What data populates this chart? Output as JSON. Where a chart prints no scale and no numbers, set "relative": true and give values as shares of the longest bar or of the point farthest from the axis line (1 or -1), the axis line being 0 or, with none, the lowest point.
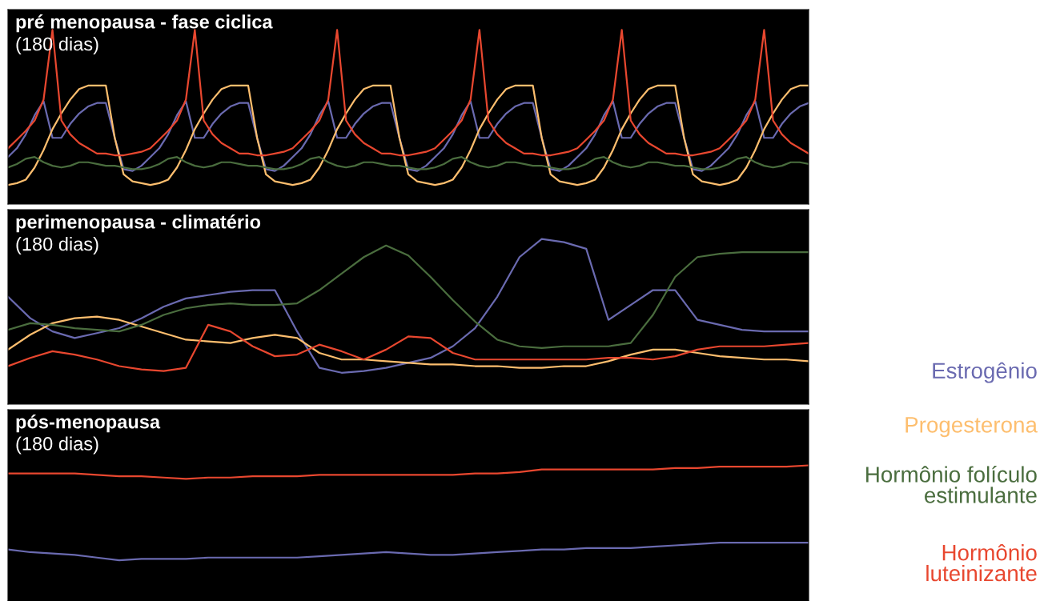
{
  "chart_data": [
    {
      "type": "line",
      "title": "pré menopausa - fase ciclica",
      "subtitle": "(180 dias)",
      "relative": true,
      "categories": [
        null,
        null,
        null,
        null,
        null,
        null,
        null,
        null,
        null,
        null,
        null,
        null,
        null,
        null,
        null,
        null,
        null,
        null,
        null,
        null,
        null,
        null,
        null,
        null,
        null,
        null,
        null,
        null,
        null,
        null,
        null,
        null,
        null,
        null,
        null,
        null,
        null,
        null,
        null,
        null,
        null,
        null,
        null,
        null,
        null,
        null,
        null,
        null,
        null,
        null,
        null,
        null,
        null,
        null,
        null,
        null,
        null,
        null,
        null,
        null,
        null,
        null,
        null,
        null,
        null,
        null,
        null,
        null,
        null,
        null,
        null,
        null,
        null,
        null,
        null,
        null,
        null,
        null,
        null,
        null,
        null,
        null,
        null,
        null,
        null,
        null,
        null,
        null,
        null,
        null,
        null
      ],
      "series": [
        {
          "name": "Estrogênio",
          "color": "#6a6ab0",
          "values": [
            0.27,
            0.32,
            0.4,
            0.51,
            0.59,
            0.38,
            0.38,
            0.46,
            0.52,
            0.56,
            0.58,
            0.58,
            0.38,
            0.2,
            0.19,
            0.22,
            0.27,
            0.32,
            0.4,
            0.51,
            0.59,
            0.38,
            0.38,
            0.46,
            0.52,
            0.56,
            0.58,
            0.58,
            0.38,
            0.2,
            0.19,
            0.22,
            0.27,
            0.32,
            0.4,
            0.51,
            0.59,
            0.38,
            0.38,
            0.46,
            0.52,
            0.56,
            0.58,
            0.58,
            0.38,
            0.2,
            0.19,
            0.22,
            0.27,
            0.32,
            0.4,
            0.51,
            0.59,
            0.38,
            0.38,
            0.46,
            0.52,
            0.56,
            0.58,
            0.58,
            0.38,
            0.2,
            0.19,
            0.22,
            0.27,
            0.32,
            0.4,
            0.51,
            0.59,
            0.38,
            0.38,
            0.46,
            0.52,
            0.56,
            0.58,
            0.58,
            0.38,
            0.2,
            0.19,
            0.22,
            0.27,
            0.32,
            0.4,
            0.51,
            0.59,
            0.38,
            0.38,
            0.46,
            0.52,
            0.56,
            0.58
          ]
        },
        {
          "name": "Progesterona",
          "color": "#fdbe6e",
          "values": [
            0.11,
            0.12,
            0.14,
            0.21,
            0.31,
            0.43,
            0.52,
            0.6,
            0.66,
            0.68,
            0.68,
            0.68,
            0.38,
            0.17,
            0.13,
            0.12,
            0.11,
            0.12,
            0.14,
            0.21,
            0.31,
            0.43,
            0.52,
            0.6,
            0.66,
            0.68,
            0.68,
            0.68,
            0.38,
            0.17,
            0.13,
            0.12,
            0.11,
            0.12,
            0.14,
            0.21,
            0.31,
            0.43,
            0.52,
            0.6,
            0.66,
            0.68,
            0.68,
            0.68,
            0.38,
            0.17,
            0.13,
            0.12,
            0.11,
            0.12,
            0.14,
            0.21,
            0.31,
            0.43,
            0.52,
            0.6,
            0.66,
            0.68,
            0.68,
            0.68,
            0.38,
            0.17,
            0.13,
            0.12,
            0.11,
            0.12,
            0.14,
            0.21,
            0.31,
            0.43,
            0.52,
            0.6,
            0.66,
            0.68,
            0.68,
            0.68,
            0.38,
            0.17,
            0.13,
            0.12,
            0.11,
            0.12,
            0.14,
            0.21,
            0.31,
            0.43,
            0.52,
            0.6,
            0.66,
            0.68,
            0.68
          ]
        },
        {
          "name": "Hormônio folículo\nestimulante",
          "color": "#4a6d3e",
          "values": [
            0.21,
            0.23,
            0.26,
            0.27,
            0.24,
            0.22,
            0.21,
            0.22,
            0.24,
            0.24,
            0.23,
            0.22,
            0.22,
            0.21,
            0.2,
            0.2,
            0.21,
            0.23,
            0.26,
            0.27,
            0.24,
            0.22,
            0.21,
            0.22,
            0.24,
            0.24,
            0.23,
            0.22,
            0.22,
            0.21,
            0.2,
            0.2,
            0.21,
            0.23,
            0.26,
            0.27,
            0.24,
            0.22,
            0.21,
            0.22,
            0.24,
            0.24,
            0.23,
            0.22,
            0.22,
            0.21,
            0.2,
            0.2,
            0.21,
            0.23,
            0.26,
            0.27,
            0.24,
            0.22,
            0.21,
            0.22,
            0.24,
            0.24,
            0.23,
            0.22,
            0.22,
            0.21,
            0.2,
            0.2,
            0.21,
            0.23,
            0.26,
            0.27,
            0.24,
            0.22,
            0.21,
            0.22,
            0.24,
            0.24,
            0.23,
            0.22,
            0.22,
            0.21,
            0.2,
            0.2,
            0.21,
            0.23,
            0.26,
            0.27,
            0.24,
            0.22,
            0.21,
            0.22,
            0.24,
            0.24,
            0.23
          ]
        },
        {
          "name": "Hormônio\nluteinizante",
          "color": "#e8472f",
          "values": [
            0.32,
            0.37,
            0.42,
            0.48,
            0.6,
            1.0,
            0.48,
            0.4,
            0.35,
            0.32,
            0.29,
            0.29,
            0.28,
            0.28,
            0.29,
            0.3,
            0.32,
            0.37,
            0.42,
            0.48,
            0.6,
            1.0,
            0.48,
            0.4,
            0.35,
            0.32,
            0.29,
            0.29,
            0.28,
            0.28,
            0.29,
            0.3,
            0.32,
            0.37,
            0.42,
            0.48,
            0.6,
            1.0,
            0.48,
            0.4,
            0.35,
            0.32,
            0.29,
            0.29,
            0.28,
            0.28,
            0.29,
            0.3,
            0.32,
            0.37,
            0.42,
            0.48,
            0.6,
            1.0,
            0.48,
            0.4,
            0.35,
            0.32,
            0.29,
            0.29,
            0.28,
            0.28,
            0.29,
            0.3,
            0.32,
            0.37,
            0.42,
            0.48,
            0.6,
            1.0,
            0.48,
            0.4,
            0.35,
            0.32,
            0.29,
            0.29,
            0.28,
            0.28,
            0.29,
            0.3,
            0.32,
            0.37,
            0.42,
            0.48,
            0.6,
            1.0,
            0.48,
            0.4,
            0.35,
            0.32,
            0.29
          ]
        }
      ]
    },
    {
      "type": "line",
      "title": "perimenopausa - climatério",
      "subtitle": "(180 dias)",
      "relative": true,
      "categories": [
        null,
        null,
        null,
        null,
        null,
        null,
        null,
        null,
        null,
        null,
        null,
        null,
        null,
        null,
        null,
        null,
        null,
        null,
        null,
        null,
        null,
        null,
        null,
        null,
        null,
        null,
        null,
        null,
        null,
        null,
        null,
        null,
        null,
        null,
        null,
        null,
        null
      ],
      "series": [
        {
          "color": "#6a6ab0",
          "values": [
            0.65,
            0.52,
            0.44,
            0.4,
            0.43,
            0.46,
            0.52,
            0.59,
            0.64,
            0.66,
            0.68,
            0.69,
            0.69,
            0.44,
            0.22,
            0.19,
            0.2,
            0.22,
            0.25,
            0.28,
            0.35,
            0.46,
            0.65,
            0.89,
            1.0,
            0.98,
            0.94,
            0.51,
            0.6,
            0.69,
            0.69,
            0.51,
            0.48,
            0.45,
            0.44,
            0.44,
            0.44
          ]
        },
        {
          "color": "#fdbe6e",
          "values": [
            0.33,
            0.42,
            0.49,
            0.52,
            0.53,
            0.51,
            0.47,
            0.43,
            0.39,
            0.38,
            0.37,
            0.4,
            0.42,
            0.4,
            0.31,
            0.27,
            0.27,
            0.26,
            0.25,
            0.24,
            0.24,
            0.23,
            0.23,
            0.22,
            0.22,
            0.23,
            0.23,
            0.26,
            0.3,
            0.33,
            0.33,
            0.31,
            0.29,
            0.28,
            0.27,
            0.27,
            0.26
          ]
        },
        {
          "color": "#4a6d3e",
          "values": [
            0.45,
            0.49,
            0.48,
            0.46,
            0.45,
            0.44,
            0.48,
            0.54,
            0.58,
            0.6,
            0.61,
            0.6,
            0.6,
            0.61,
            0.69,
            0.79,
            0.89,
            0.96,
            0.9,
            0.77,
            0.63,
            0.5,
            0.39,
            0.35,
            0.34,
            0.35,
            0.35,
            0.35,
            0.37,
            0.54,
            0.77,
            0.89,
            0.91,
            0.92,
            0.92,
            0.92,
            0.92
          ]
        },
        {
          "color": "#e8472f",
          "values": [
            0.23,
            0.28,
            0.32,
            0.3,
            0.27,
            0.23,
            0.21,
            0.2,
            0.22,
            0.48,
            0.44,
            0.35,
            0.29,
            0.3,
            0.36,
            0.32,
            0.27,
            0.33,
            0.41,
            0.4,
            0.31,
            0.27,
            0.27,
            0.27,
            0.27,
            0.27,
            0.27,
            0.28,
            0.28,
            0.27,
            0.29,
            0.33,
            0.35,
            0.35,
            0.35,
            0.36,
            0.37
          ]
        }
      ]
    },
    {
      "type": "line",
      "title": "pós-menopausa",
      "subtitle": "(180 dias)",
      "relative": true,
      "categories": [
        null,
        null,
        null,
        null,
        null,
        null,
        null,
        null,
        null,
        null,
        null,
        null,
        null,
        null,
        null,
        null,
        null,
        null,
        null,
        null,
        null,
        null,
        null,
        null,
        null,
        null,
        null,
        null,
        null,
        null,
        null,
        null,
        null,
        null,
        null,
        null,
        null
      ],
      "series": [
        {
          "color": "#6a6ab0",
          "values": [
            0.38,
            0.36,
            0.35,
            0.34,
            0.32,
            0.3,
            0.31,
            0.31,
            0.31,
            0.32,
            0.32,
            0.32,
            0.32,
            0.32,
            0.33,
            0.34,
            0.35,
            0.36,
            0.35,
            0.34,
            0.34,
            0.35,
            0.36,
            0.37,
            0.38,
            0.38,
            0.39,
            0.39,
            0.39,
            0.4,
            0.41,
            0.42,
            0.43,
            0.43,
            0.43,
            0.43,
            0.43
          ]
        },
        {
          "color": "#e8472f",
          "values": [
            0.94,
            0.94,
            0.94,
            0.94,
            0.93,
            0.92,
            0.92,
            0.91,
            0.9,
            0.91,
            0.91,
            0.92,
            0.92,
            0.92,
            0.93,
            0.93,
            0.93,
            0.93,
            0.93,
            0.93,
            0.93,
            0.94,
            0.94,
            0.95,
            0.97,
            0.97,
            0.97,
            0.97,
            0.97,
            0.97,
            0.98,
            0.98,
            0.99,
            0.99,
            0.99,
            0.99,
            1.0
          ]
        }
      ]
    }
  ]
}
